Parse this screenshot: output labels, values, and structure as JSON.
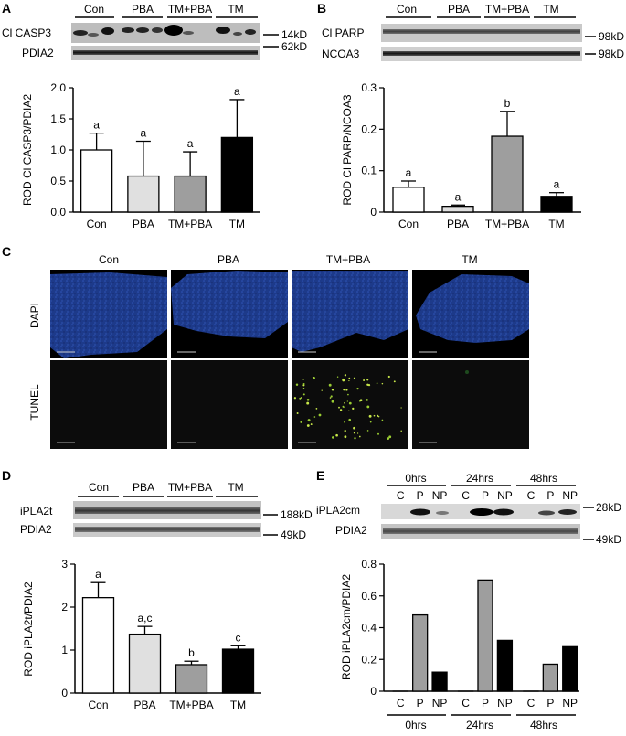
{
  "panels": {
    "A": {
      "letter": "A",
      "groups": [
        "Con",
        "PBA",
        "TM+PBA",
        "TM"
      ],
      "blot1": "Cl CASP3",
      "blot2": "PDIA2",
      "marker1": "14kD",
      "marker2": "62kD"
    },
    "B": {
      "letter": "B",
      "groups": [
        "Con",
        "PBA",
        "TM+PBA",
        "TM"
      ],
      "blot1": "Cl PARP",
      "blot2": "NCOA3",
      "marker1": "98kD",
      "marker2": "98kD"
    },
    "C": {
      "letter": "C",
      "columns": [
        "Con",
        "PBA",
        "TM+PBA",
        "TM"
      ],
      "rows": [
        "DAPI",
        "TUNEL"
      ]
    },
    "D": {
      "letter": "D",
      "groups": [
        "Con",
        "PBA",
        "TM+PBA",
        "TM"
      ],
      "blot1": "iPLA2t",
      "blot2": "PDIA2",
      "marker1": "188kD",
      "marker2": "49kD"
    },
    "E": {
      "letter": "E",
      "times": [
        "0hrs",
        "24hrs",
        "48hrs"
      ],
      "lanes": [
        "C",
        "P",
        "NP"
      ],
      "blot1": "iPLA2cm",
      "blot2": "PDIA2",
      "marker1": "28kD",
      "marker2": "49kD"
    }
  },
  "colors": {
    "white": "#ffffff",
    "light": "#e0e0e0",
    "mid": "#9e9e9e",
    "black": "#000000",
    "dapi": "#1d3a8a",
    "tunel": "#0c0c0c"
  },
  "chart_data": [
    {
      "id": "A",
      "type": "bar",
      "categories": [
        "Con",
        "PBA",
        "TM+PBA",
        "TM"
      ],
      "values": [
        1.0,
        0.58,
        0.58,
        1.2
      ],
      "errors": [
        0.27,
        0.56,
        0.39,
        0.61
      ],
      "sig": [
        "a",
        "a",
        "a",
        "a"
      ],
      "fills": [
        "#ffffff",
        "#e0e0e0",
        "#9e9e9e",
        "#000000"
      ],
      "ylabel": "ROD Cl CASP3/PDIA2",
      "ylim": [
        0,
        2.0
      ],
      "yticks": [
        "0.0",
        "0.5",
        "1.0",
        "1.5",
        "2.0"
      ]
    },
    {
      "id": "B",
      "type": "bar",
      "categories": [
        "Con",
        "PBA",
        "TM+PBA",
        "TM"
      ],
      "values": [
        0.06,
        0.014,
        0.183,
        0.038
      ],
      "errors": [
        0.015,
        0.003,
        0.06,
        0.009
      ],
      "sig": [
        "a",
        "a",
        "b",
        "a"
      ],
      "fills": [
        "#ffffff",
        "#e0e0e0",
        "#9e9e9e",
        "#000000"
      ],
      "ylabel": "ROD Cl PARP/NCOA3",
      "ylim": [
        0,
        0.3
      ],
      "yticks": [
        "0",
        "0.1",
        "0.2",
        "0.3"
      ]
    },
    {
      "id": "D",
      "type": "bar",
      "categories": [
        "Con",
        "PBA",
        "TM+PBA",
        "TM"
      ],
      "values": [
        2.22,
        1.37,
        0.66,
        1.02
      ],
      "errors": [
        0.35,
        0.18,
        0.08,
        0.08
      ],
      "sig": [
        "a",
        "a,c",
        "b",
        "c"
      ],
      "fills": [
        "#ffffff",
        "#e0e0e0",
        "#9e9e9e",
        "#000000"
      ],
      "ylabel": "ROD iPLA2t/PDIA2",
      "ylim": [
        0,
        3
      ],
      "yticks": [
        "0",
        "1",
        "2",
        "3"
      ]
    },
    {
      "id": "E",
      "type": "bar",
      "categories": [
        "C",
        "P",
        "NP",
        "C",
        "P",
        "NP",
        "C",
        "P",
        "NP"
      ],
      "groups": [
        "0hrs",
        "24hrs",
        "48hrs"
      ],
      "values": [
        0.0,
        0.48,
        0.12,
        0.0,
        0.7,
        0.32,
        0.0,
        0.17,
        0.28
      ],
      "fills": [
        "#ffffff",
        "#9e9e9e",
        "#000000",
        "#ffffff",
        "#9e9e9e",
        "#000000",
        "#ffffff",
        "#9e9e9e",
        "#000000"
      ],
      "ylabel": "ROD iPLA2cm/PDIA2",
      "ylim": [
        0,
        0.8
      ],
      "yticks": [
        "0",
        "0.2",
        "0.4",
        "0.6",
        "0.8"
      ]
    }
  ]
}
